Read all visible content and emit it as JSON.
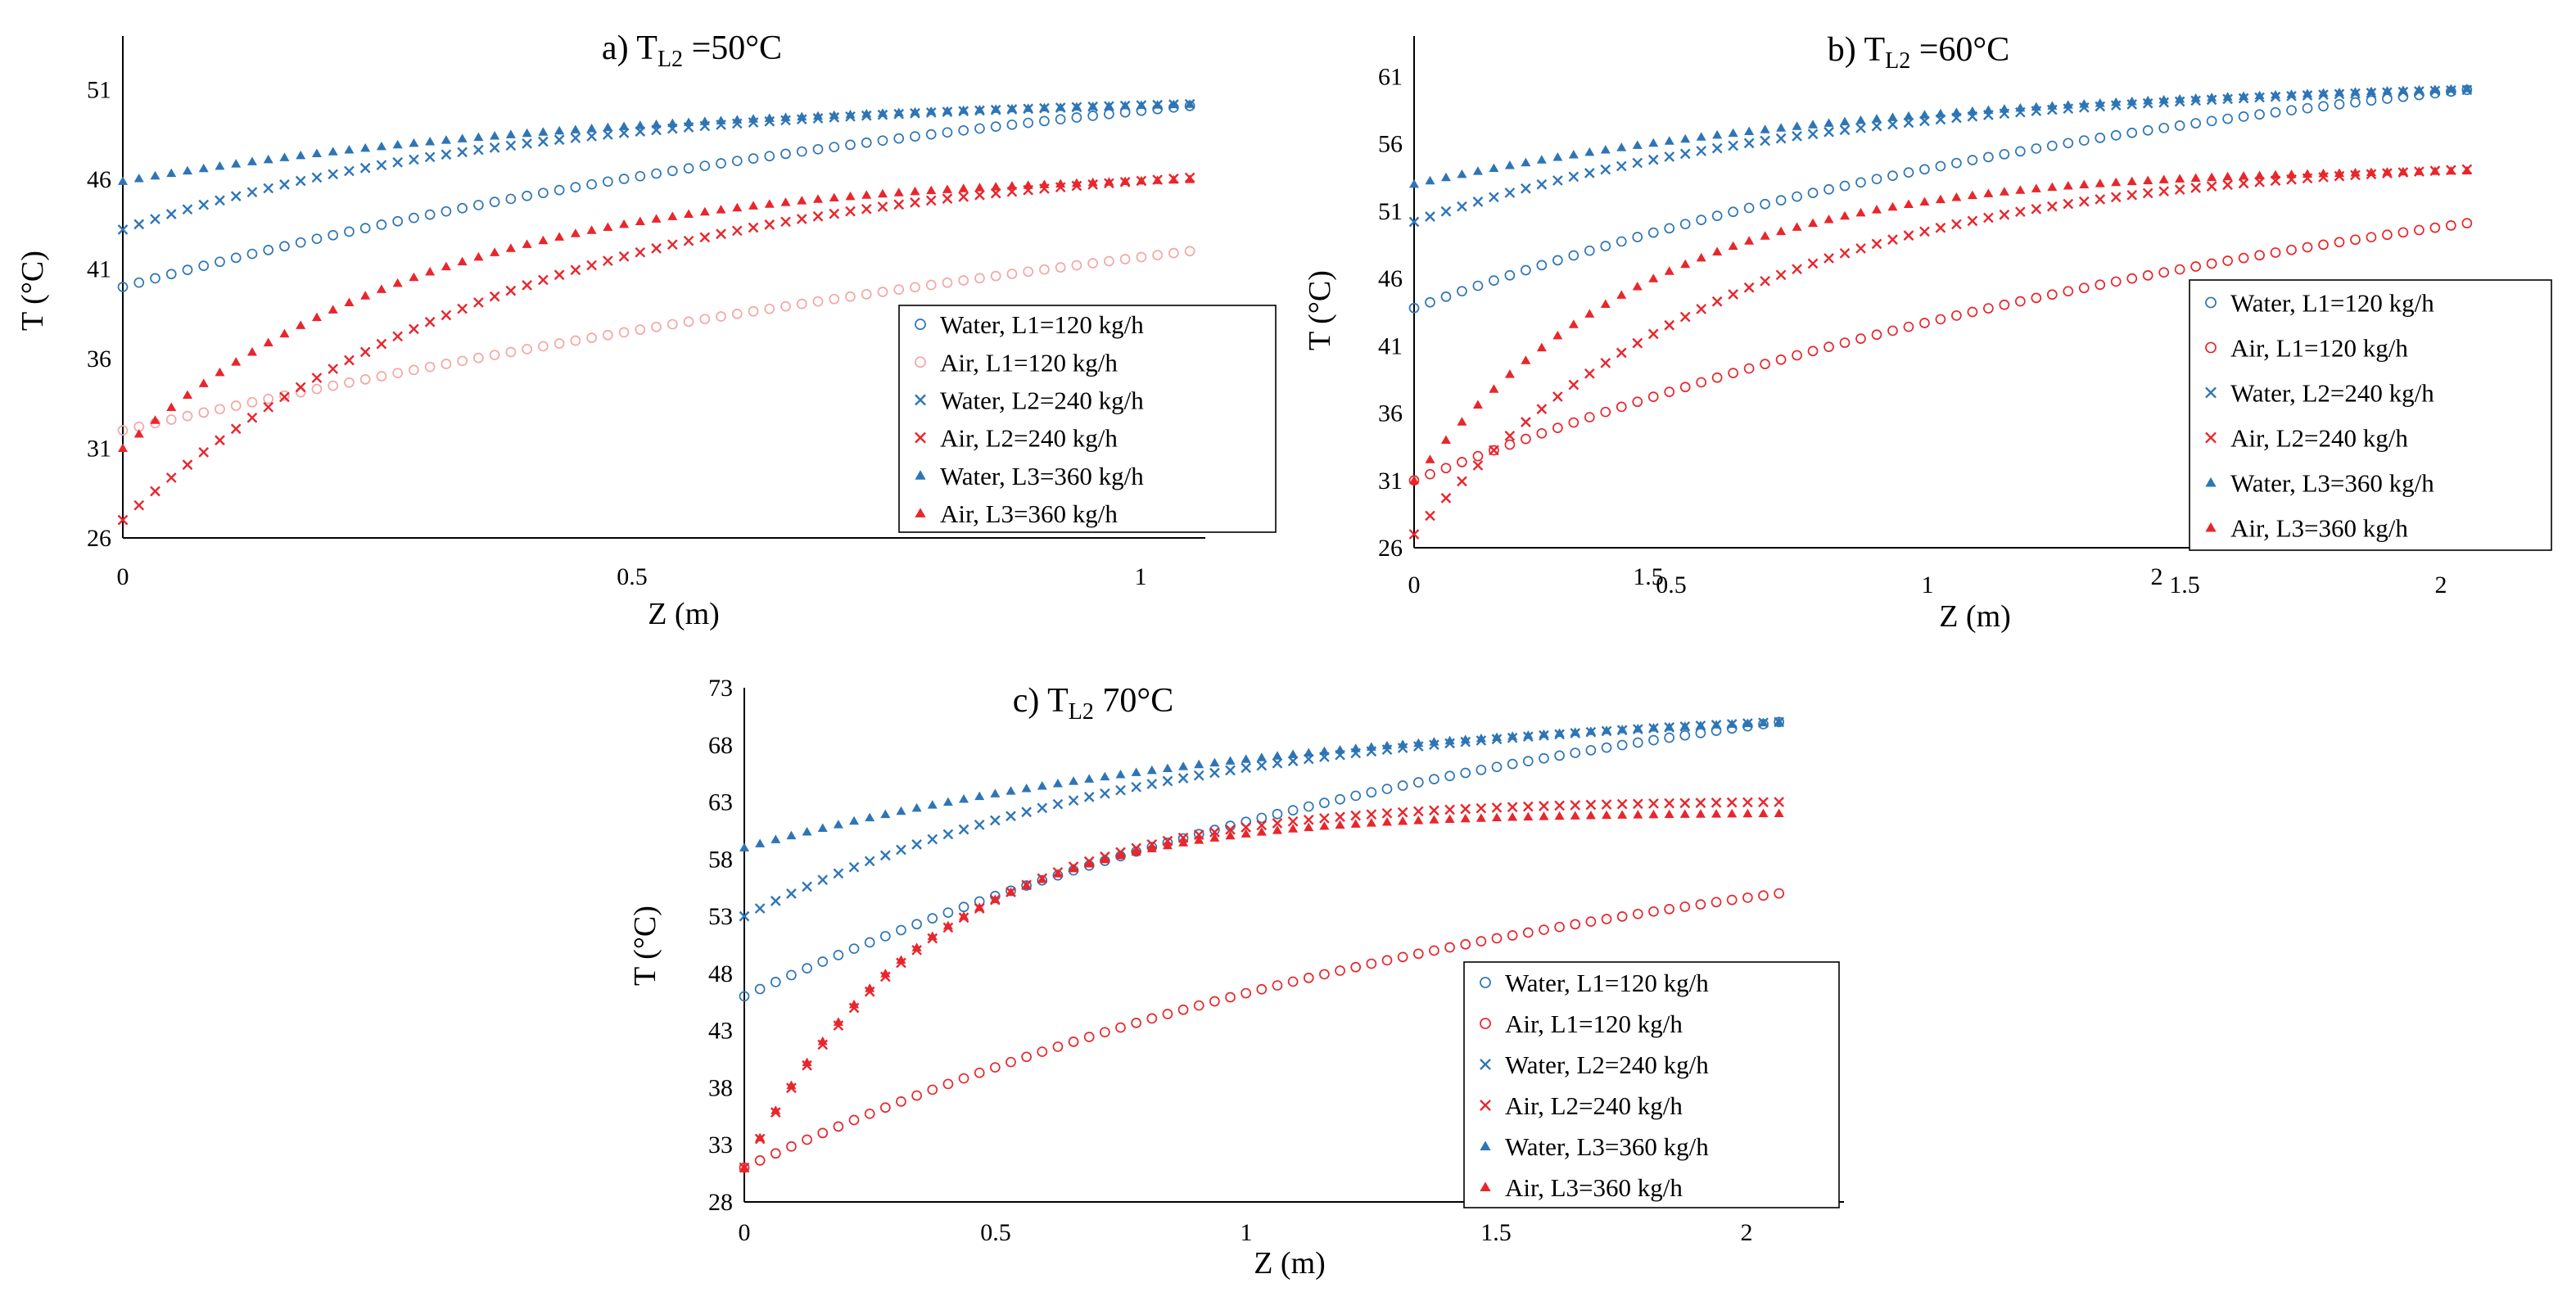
{
  "chart_data": [
    {
      "type": "scatter",
      "title": "a) T",
      "title_sub": "L2",
      "title_rest": " =50°C",
      "xlabel": "Z (m)",
      "ylabel": "T (°C)",
      "xlim": [
        0,
        2.1
      ],
      "ylim": [
        26,
        54
      ],
      "xticks": [
        "0",
        "0.5",
        "1",
        "1.5",
        "2"
      ],
      "yticks": [
        "26",
        "31",
        "36",
        "41",
        "46",
        "51"
      ],
      "series": [
        {
          "name": "Water, L1=120 kg/h",
          "marker": "circle",
          "color": "#2e75b6",
          "x_range": [
            0,
            2.07
          ],
          "z0": 40.0,
          "z1": 50.1,
          "shape": 0.5
        },
        {
          "name": "Air, L1=120 kg/h",
          "marker": "circle",
          "color": "#f4a6a6",
          "x_range": [
            0,
            2.07
          ],
          "z0": 32.0,
          "z1": 42.0,
          "shape": 0.3
        },
        {
          "name": "Water, L2=240 kg/h",
          "marker": "x",
          "color": "#2e75b6",
          "x_range": [
            0,
            2.07
          ],
          "z0": 43.2,
          "z1": 50.2,
          "shape": 1.3
        },
        {
          "name": "Air, L2=240 kg/h",
          "marker": "x",
          "color": "#e8262c",
          "x_range": [
            0,
            2.07
          ],
          "z0": 27.0,
          "z1": 46.1,
          "shape": 1.3
        },
        {
          "name": "Water, L3=360 kg/h",
          "marker": "triangle",
          "color": "#2e75b6",
          "x_range": [
            0,
            2.07
          ],
          "z0": 45.9,
          "z1": 50.2,
          "shape": 1.0
        },
        {
          "name": "Air, L3=360 kg/h",
          "marker": "triangle",
          "color": "#e8262c",
          "x_range": [
            0,
            2.07
          ],
          "z0": 31.0,
          "z1": 46.0,
          "shape": 1.7
        }
      ],
      "legend_position": "bottom-right"
    },
    {
      "type": "scatter",
      "title": "b) T",
      "title_sub": "L2",
      "title_rest": " =60°C",
      "xlabel": "Z (m)",
      "ylabel": "T (°C)",
      "xlim": [
        0,
        2.22
      ],
      "ylim": [
        26,
        64
      ],
      "xticks": [
        "0",
        "0.5",
        "1",
        "1.5",
        "2"
      ],
      "yticks": [
        "26",
        "31",
        "36",
        "41",
        "46",
        "51",
        "56",
        "61"
      ],
      "series": [
        {
          "name": "Water, L1=120 kg/h",
          "marker": "circle",
          "color": "#2e75b6",
          "x_range": [
            0,
            2.07
          ],
          "z0": 43.8,
          "z1": 60.0,
          "shape": 0.6
        },
        {
          "name": "Air, L1=120 kg/h",
          "marker": "circle",
          "color": "#e8262c",
          "x_range": [
            0,
            2.07
          ],
          "z0": 31.0,
          "z1": 50.1,
          "shape": 0.5
        },
        {
          "name": "Water, L2=240 kg/h",
          "marker": "x",
          "color": "#2e75b6",
          "x_range": [
            0,
            2.07
          ],
          "z0": 50.2,
          "z1": 60.0,
          "shape": 1.2
        },
        {
          "name": "Air, L2=240 kg/h",
          "marker": "x",
          "color": "#e8262c",
          "x_range": [
            0,
            2.07
          ],
          "z0": 27.0,
          "z1": 54.1,
          "shape": 1.6
        },
        {
          "name": "Water, L3=360 kg/h",
          "marker": "triangle",
          "color": "#2e75b6",
          "x_range": [
            0,
            2.07
          ],
          "z0": 53.0,
          "z1": 60.1,
          "shape": 1.0
        },
        {
          "name": "Air, L3=360 kg/h",
          "marker": "triangle",
          "color": "#e8262c",
          "x_range": [
            0,
            2.07
          ],
          "z0": 31.0,
          "z1": 54.0,
          "shape": 2.2
        }
      ],
      "legend_position": "bottom-right"
    },
    {
      "type": "scatter",
      "title": "c) T",
      "title_sub": "L2",
      "title_rest": " 70°C",
      "xlabel": "Z (m)",
      "ylabel": "T (°C)",
      "xlim": [
        0,
        2.2
      ],
      "ylim": [
        28,
        73
      ],
      "xticks": [
        "0",
        "0.5",
        "1",
        "1.5",
        "2"
      ],
      "yticks": [
        "28",
        "33",
        "38",
        "43",
        "48",
        "53",
        "58",
        "63",
        "68",
        "73"
      ],
      "series": [
        {
          "name": "Water, L1=120 kg/h",
          "marker": "circle",
          "color": "#2e75b6",
          "x_range": [
            0,
            2.07
          ],
          "z0": 46.0,
          "z1": 70.0,
          "shape": 0.6
        },
        {
          "name": "Air, L1=120 kg/h",
          "marker": "circle",
          "color": "#e8262c",
          "x_range": [
            0,
            2.07
          ],
          "z0": 31.0,
          "z1": 55.0,
          "shape": 0.6
        },
        {
          "name": "Water, L2=240 kg/h",
          "marker": "x",
          "color": "#2e75b6",
          "x_range": [
            0,
            2.07
          ],
          "z0": 53.0,
          "z1": 70.0,
          "shape": 1.2
        },
        {
          "name": "Air, L2=240 kg/h",
          "marker": "x",
          "color": "#e8262c",
          "x_range": [
            0,
            2.07
          ],
          "z0": 31.0,
          "z1": 63.0,
          "shape": 2.6
        },
        {
          "name": "Water, L3=360 kg/h",
          "marker": "triangle",
          "color": "#2e75b6",
          "x_range": [
            0,
            2.07
          ],
          "z0": 59.0,
          "z1": 70.0,
          "shape": 0.9
        },
        {
          "name": "Air, L3=360 kg/h",
          "marker": "triangle",
          "color": "#e8262c",
          "x_range": [
            0,
            2.07
          ],
          "z0": 31.0,
          "z1": 62.0,
          "shape": 2.8
        }
      ],
      "legend_position": "bottom-right"
    }
  ]
}
